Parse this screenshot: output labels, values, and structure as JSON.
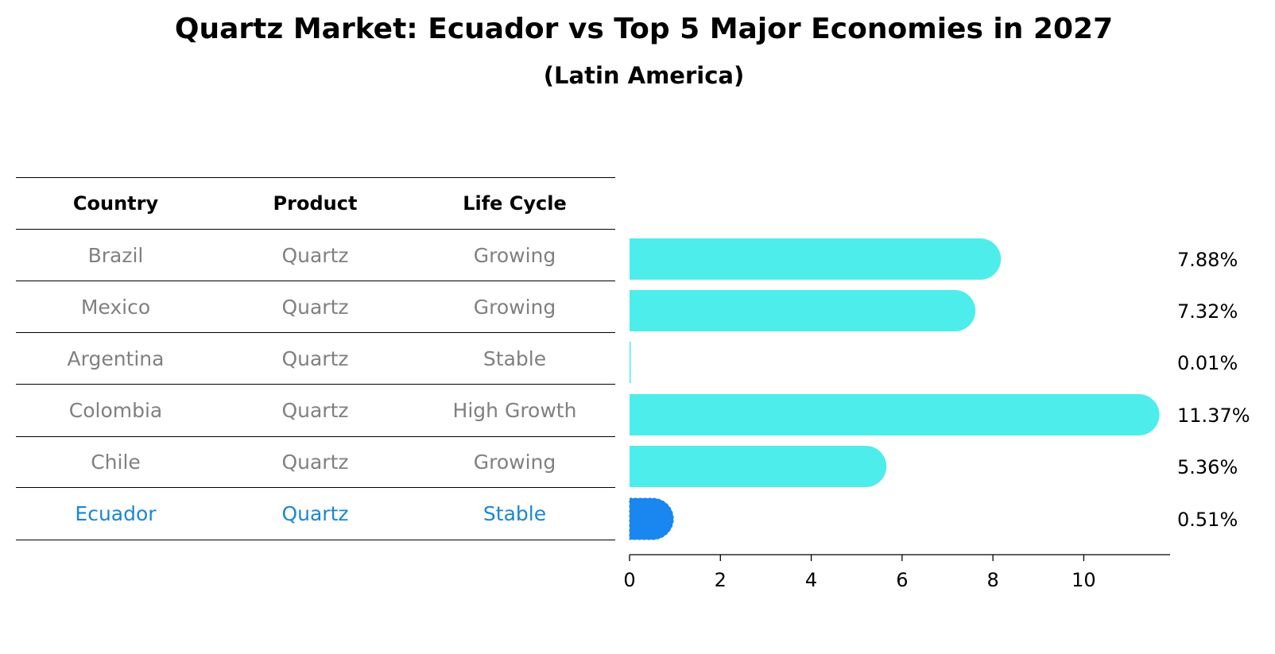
{
  "title": "Quartz Market: Ecuador vs Top 5 Major Economies in 2027",
  "subtitle": "(Latin America)",
  "table": {
    "headers": [
      "Country",
      "Product",
      "Life Cycle"
    ],
    "rows": [
      {
        "country": "Brazil",
        "product": "Quartz",
        "life_cycle": "Growing"
      },
      {
        "country": "Mexico",
        "product": "Quartz",
        "life_cycle": "Growing"
      },
      {
        "country": "Argentina",
        "product": "Quartz",
        "life_cycle": "Stable"
      },
      {
        "country": "Colombia",
        "product": "Quartz",
        "life_cycle": "High Growth"
      },
      {
        "country": "Chile",
        "product": "Quartz",
        "life_cycle": "Growing"
      },
      {
        "country": "Ecuador",
        "product": "Quartz",
        "life_cycle": "Stable"
      }
    ],
    "highlight_row": "Ecuador"
  },
  "colors": {
    "bar": "#4dedec",
    "highlight_bar": "#1a86f0",
    "muted_text": "#808080",
    "highlight_text": "#1a86d8"
  },
  "chart_data": {
    "type": "bar",
    "orientation": "horizontal",
    "categories": [
      "Brazil",
      "Mexico",
      "Argentina",
      "Colombia",
      "Chile",
      "Ecuador"
    ],
    "values": [
      7.88,
      7.32,
      0.01,
      11.37,
      5.36,
      0.51
    ],
    "value_labels": [
      "7.88%",
      "7.32%",
      "0.01%",
      "11.37%",
      "5.36%",
      "0.51%"
    ],
    "xlim": [
      0,
      11.9
    ],
    "xticks": [
      0,
      2,
      4,
      6,
      8,
      10
    ],
    "xtick_labels": [
      "0",
      "2",
      "4",
      "6",
      "8",
      "10"
    ],
    "highlight": "Ecuador",
    "grid": false
  }
}
